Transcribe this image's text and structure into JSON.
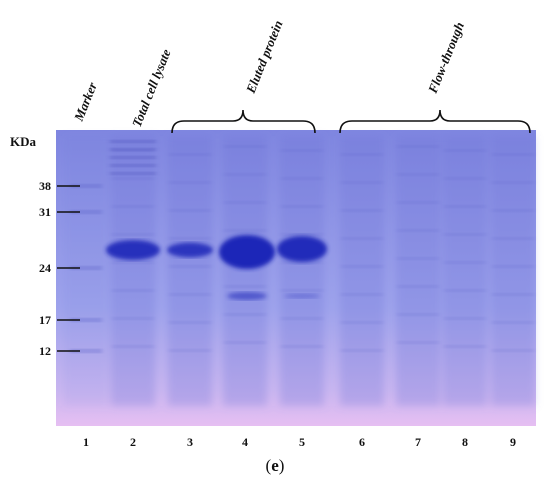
{
  "column_labels": [
    "Marker",
    "Total cell lysate"
  ],
  "groups": [
    {
      "label": "Eluted protein"
    },
    {
      "label": "Flow-through"
    }
  ],
  "axis_unit": "KDa",
  "markers": [
    38,
    31,
    24,
    17,
    12
  ],
  "lanes": [
    1,
    2,
    3,
    4,
    5,
    6,
    7,
    8,
    9
  ],
  "panel": {
    "open": "(",
    "letter": "e",
    "close": ")"
  }
}
